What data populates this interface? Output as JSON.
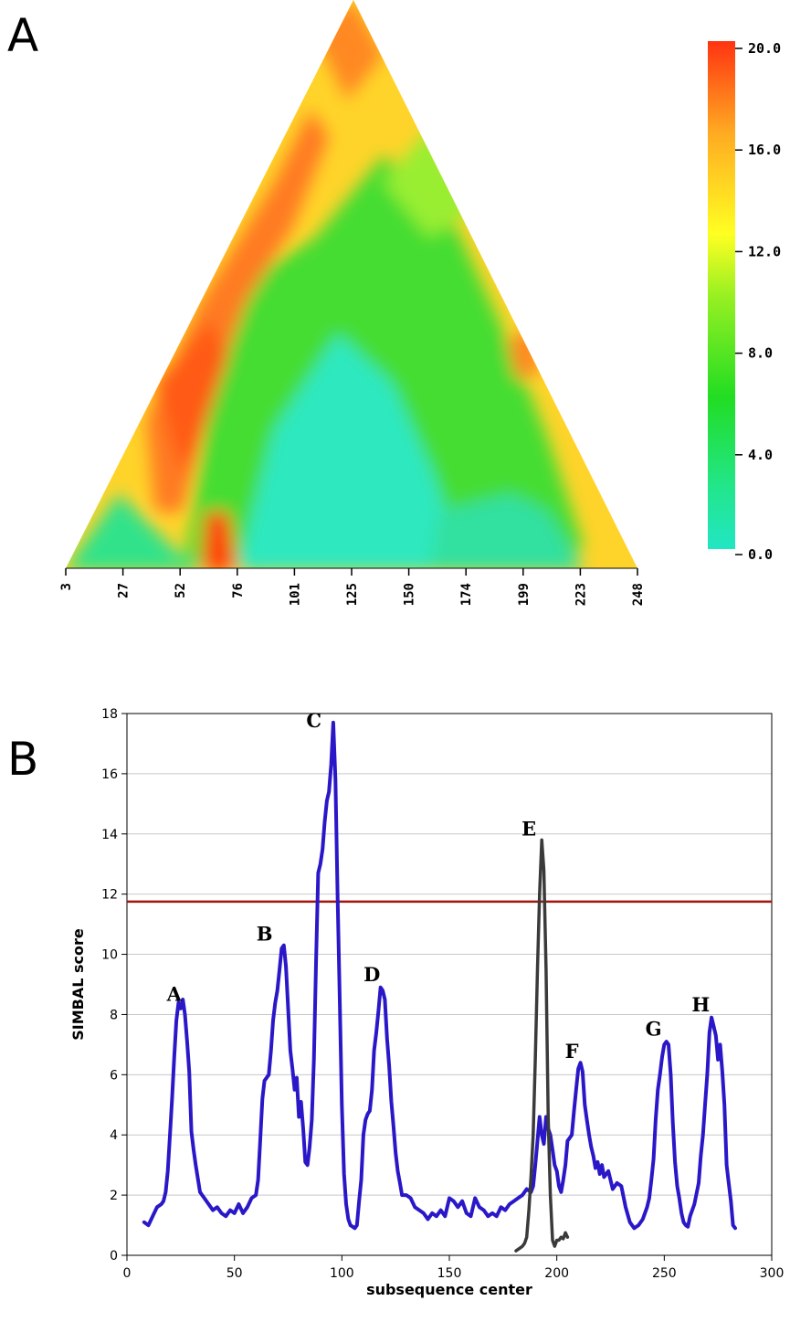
{
  "panels": {
    "a": "A",
    "b": "B"
  },
  "colors": {
    "heat_low": "#22e6c4",
    "heat_mid": "#22dd22",
    "heat_high_mid": "#ffff22",
    "heat_high": "#ff3311",
    "series_blue": "#2a18c8",
    "series_gray": "#3a3a3a",
    "threshold": "#a3140e",
    "grid": "#c8c8c8"
  },
  "chart_data": [
    {
      "type": "heatmap",
      "title": "",
      "xlabel": "",
      "ylabel": "",
      "x_tick_labels": [
        "3",
        "27",
        "52",
        "76",
        "101",
        "125",
        "150",
        "174",
        "199",
        "223",
        "248"
      ],
      "colorbar": {
        "range": [
          0,
          20
        ],
        "tick_labels": [
          "20.0",
          "16.0",
          "12.0",
          "8.0",
          "4.0",
          "0.0"
        ]
      },
      "layout": "upper triangle of a symmetric window-pair matrix (apex at top)"
    },
    {
      "type": "line",
      "title": "",
      "xlabel": "subsequence center",
      "ylabel": "SIMBAL score",
      "xlim": [
        0,
        300
      ],
      "ylim": [
        0,
        18
      ],
      "x_ticks": [
        0,
        50,
        100,
        150,
        200,
        250,
        300
      ],
      "y_ticks": [
        0,
        2,
        4,
        6,
        8,
        10,
        12,
        14,
        16,
        18
      ],
      "grid": "horizontal",
      "threshold": 11.75,
      "series": [
        {
          "style": "blue",
          "x": [
            8,
            10,
            12,
            14,
            16,
            17,
            18,
            19,
            20,
            21,
            22,
            23,
            24,
            25,
            26,
            27,
            28,
            29,
            30,
            31,
            32,
            34,
            36,
            38,
            40,
            42,
            44,
            46,
            48,
            50,
            52,
            54,
            56,
            58,
            60,
            61,
            62,
            63,
            64,
            65,
            66,
            67,
            68,
            69,
            70,
            71,
            72,
            73,
            74,
            75,
            76,
            77,
            78,
            79,
            80,
            81,
            82,
            83,
            84,
            85,
            86,
            87,
            88,
            89,
            90,
            91,
            92,
            93,
            94,
            95,
            96,
            97,
            98,
            99,
            100,
            101,
            102,
            103,
            104,
            105,
            106,
            107,
            108,
            109,
            110,
            111,
            112,
            113,
            114,
            115,
            116,
            117,
            118,
            119,
            120,
            121,
            122,
            123,
            124,
            125,
            126,
            127,
            128,
            130,
            132,
            134,
            136,
            138,
            140,
            142,
            144,
            146,
            148,
            150,
            152,
            154,
            156,
            158,
            160,
            162,
            164,
            166,
            168,
            170,
            172,
            174,
            176,
            178,
            180,
            182,
            184,
            186,
            188,
            189,
            190,
            191,
            192,
            193,
            194,
            195,
            196,
            197,
            198,
            199,
            200,
            201,
            202,
            203,
            204,
            205,
            206,
            207,
            208,
            209,
            210,
            211,
            212,
            213,
            214,
            215,
            216,
            217,
            218,
            219,
            220,
            221,
            222,
            224,
            226,
            228,
            230,
            232,
            234,
            236,
            238,
            240,
            242,
            243,
            244,
            245,
            246,
            247,
            248,
            249,
            250,
            251,
            252,
            253,
            254,
            255,
            256,
            257,
            258,
            259,
            260,
            261,
            262,
            264,
            266,
            267,
            268,
            269,
            270,
            271,
            272,
            273,
            274,
            275,
            276,
            277,
            278,
            279,
            280,
            281,
            282,
            283
          ],
          "y": [
            1.1,
            1.0,
            1.3,
            1.6,
            1.7,
            1.8,
            2.1,
            2.8,
            4.0,
            5.2,
            6.6,
            7.8,
            8.4,
            8.2,
            8.5,
            8.0,
            7.1,
            6.1,
            4.1,
            3.5,
            3.0,
            2.1,
            1.9,
            1.7,
            1.5,
            1.6,
            1.4,
            1.3,
            1.5,
            1.4,
            1.7,
            1.4,
            1.6,
            1.9,
            2.0,
            2.5,
            3.8,
            5.2,
            5.8,
            5.9,
            6.0,
            6.8,
            7.8,
            8.4,
            8.8,
            9.5,
            10.2,
            10.3,
            9.6,
            8.2,
            6.8,
            6.2,
            5.5,
            5.9,
            4.6,
            5.1,
            4.2,
            3.1,
            3.0,
            3.6,
            4.5,
            6.5,
            9.8,
            12.7,
            13.0,
            13.5,
            14.4,
            15.1,
            15.4,
            16.3,
            17.7,
            15.8,
            12.0,
            8.5,
            5.0,
            2.7,
            1.7,
            1.2,
            1.0,
            0.95,
            0.9,
            1.0,
            1.8,
            2.5,
            4.0,
            4.5,
            4.7,
            4.8,
            5.5,
            6.8,
            7.4,
            8.1,
            8.9,
            8.8,
            8.5,
            7.2,
            6.3,
            5.1,
            4.3,
            3.4,
            2.8,
            2.4,
            2.0,
            2.0,
            1.9,
            1.6,
            1.5,
            1.4,
            1.2,
            1.4,
            1.3,
            1.5,
            1.3,
            1.9,
            1.8,
            1.6,
            1.8,
            1.4,
            1.3,
            1.9,
            1.6,
            1.5,
            1.3,
            1.4,
            1.3,
            1.6,
            1.5,
            1.7,
            1.8,
            1.9,
            2.0,
            2.2,
            2.1,
            2.3,
            3.0,
            3.8,
            4.6,
            4.0,
            3.7,
            4.6,
            4.2,
            4.0,
            3.5,
            3.0,
            2.8,
            2.3,
            2.1,
            2.5,
            3.0,
            3.8,
            3.9,
            4.0,
            4.8,
            5.5,
            6.2,
            6.4,
            6.1,
            5.0,
            4.5,
            4.0,
            3.6,
            3.3,
            2.9,
            3.1,
            2.7,
            3.0,
            2.6,
            2.8,
            2.2,
            2.4,
            2.3,
            1.6,
            1.1,
            0.9,
            1.0,
            1.2,
            1.6,
            1.9,
            2.5,
            3.2,
            4.5,
            5.5,
            6.0,
            6.6,
            7.0,
            7.1,
            7.0,
            6.0,
            4.4,
            3.1,
            2.3,
            1.9,
            1.4,
            1.1,
            1.0,
            0.95,
            1.3,
            1.7,
            2.4,
            3.3,
            4.0,
            5.0,
            6.0,
            7.4,
            7.9,
            7.6,
            7.3,
            6.5,
            7.0,
            6.1,
            5.0,
            3.0,
            2.4,
            1.8,
            1.0,
            0.9
          ]
        },
        {
          "style": "gray",
          "x": [
            181,
            183,
            184,
            185,
            186,
            187,
            188,
            189,
            190,
            191,
            192,
            193,
            194,
            195,
            196,
            197,
            198,
            199,
            200,
            201,
            202,
            203,
            204,
            205
          ],
          "y": [
            0.15,
            0.25,
            0.3,
            0.4,
            0.6,
            1.5,
            2.6,
            4.0,
            6.5,
            9.5,
            12.0,
            13.8,
            12.8,
            9.5,
            4.5,
            2.0,
            0.5,
            0.3,
            0.5,
            0.5,
            0.6,
            0.55,
            0.75,
            0.6
          ]
        }
      ],
      "annotations": [
        {
          "text": "A",
          "x": 22,
          "y": 8.45
        },
        {
          "text": "B",
          "x": 64,
          "y": 10.45
        },
        {
          "text": "C",
          "x": 87,
          "y": 17.55
        },
        {
          "text": "D",
          "x": 114,
          "y": 9.1
        },
        {
          "text": "E",
          "x": 187,
          "y": 13.95
        },
        {
          "text": "F",
          "x": 207,
          "y": 6.55
        },
        {
          "text": "G",
          "x": 245,
          "y": 7.3
        },
        {
          "text": "H",
          "x": 267,
          "y": 8.1
        }
      ]
    }
  ]
}
